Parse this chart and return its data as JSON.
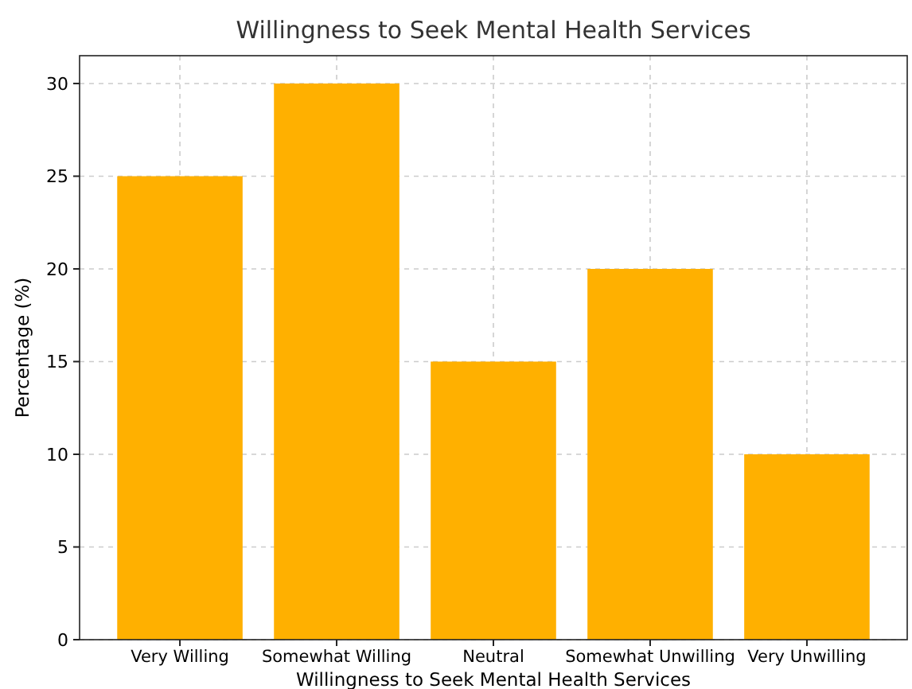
{
  "chart_data": {
    "type": "bar",
    "title": "Willingness to Seek Mental Health Services",
    "xlabel": "Willingness to Seek Mental Health Services",
    "ylabel": "Percentage (%)",
    "categories": [
      "Very Willing",
      "Somewhat Willing",
      "Neutral",
      "Somewhat Unwilling",
      "Very Unwilling"
    ],
    "values": [
      25,
      30,
      15,
      20,
      10
    ],
    "color": "#ffb000",
    "ylim": [
      0,
      31.5
    ],
    "yticks": [
      0,
      5,
      10,
      15,
      20,
      25,
      30
    ],
    "grid": true
  }
}
